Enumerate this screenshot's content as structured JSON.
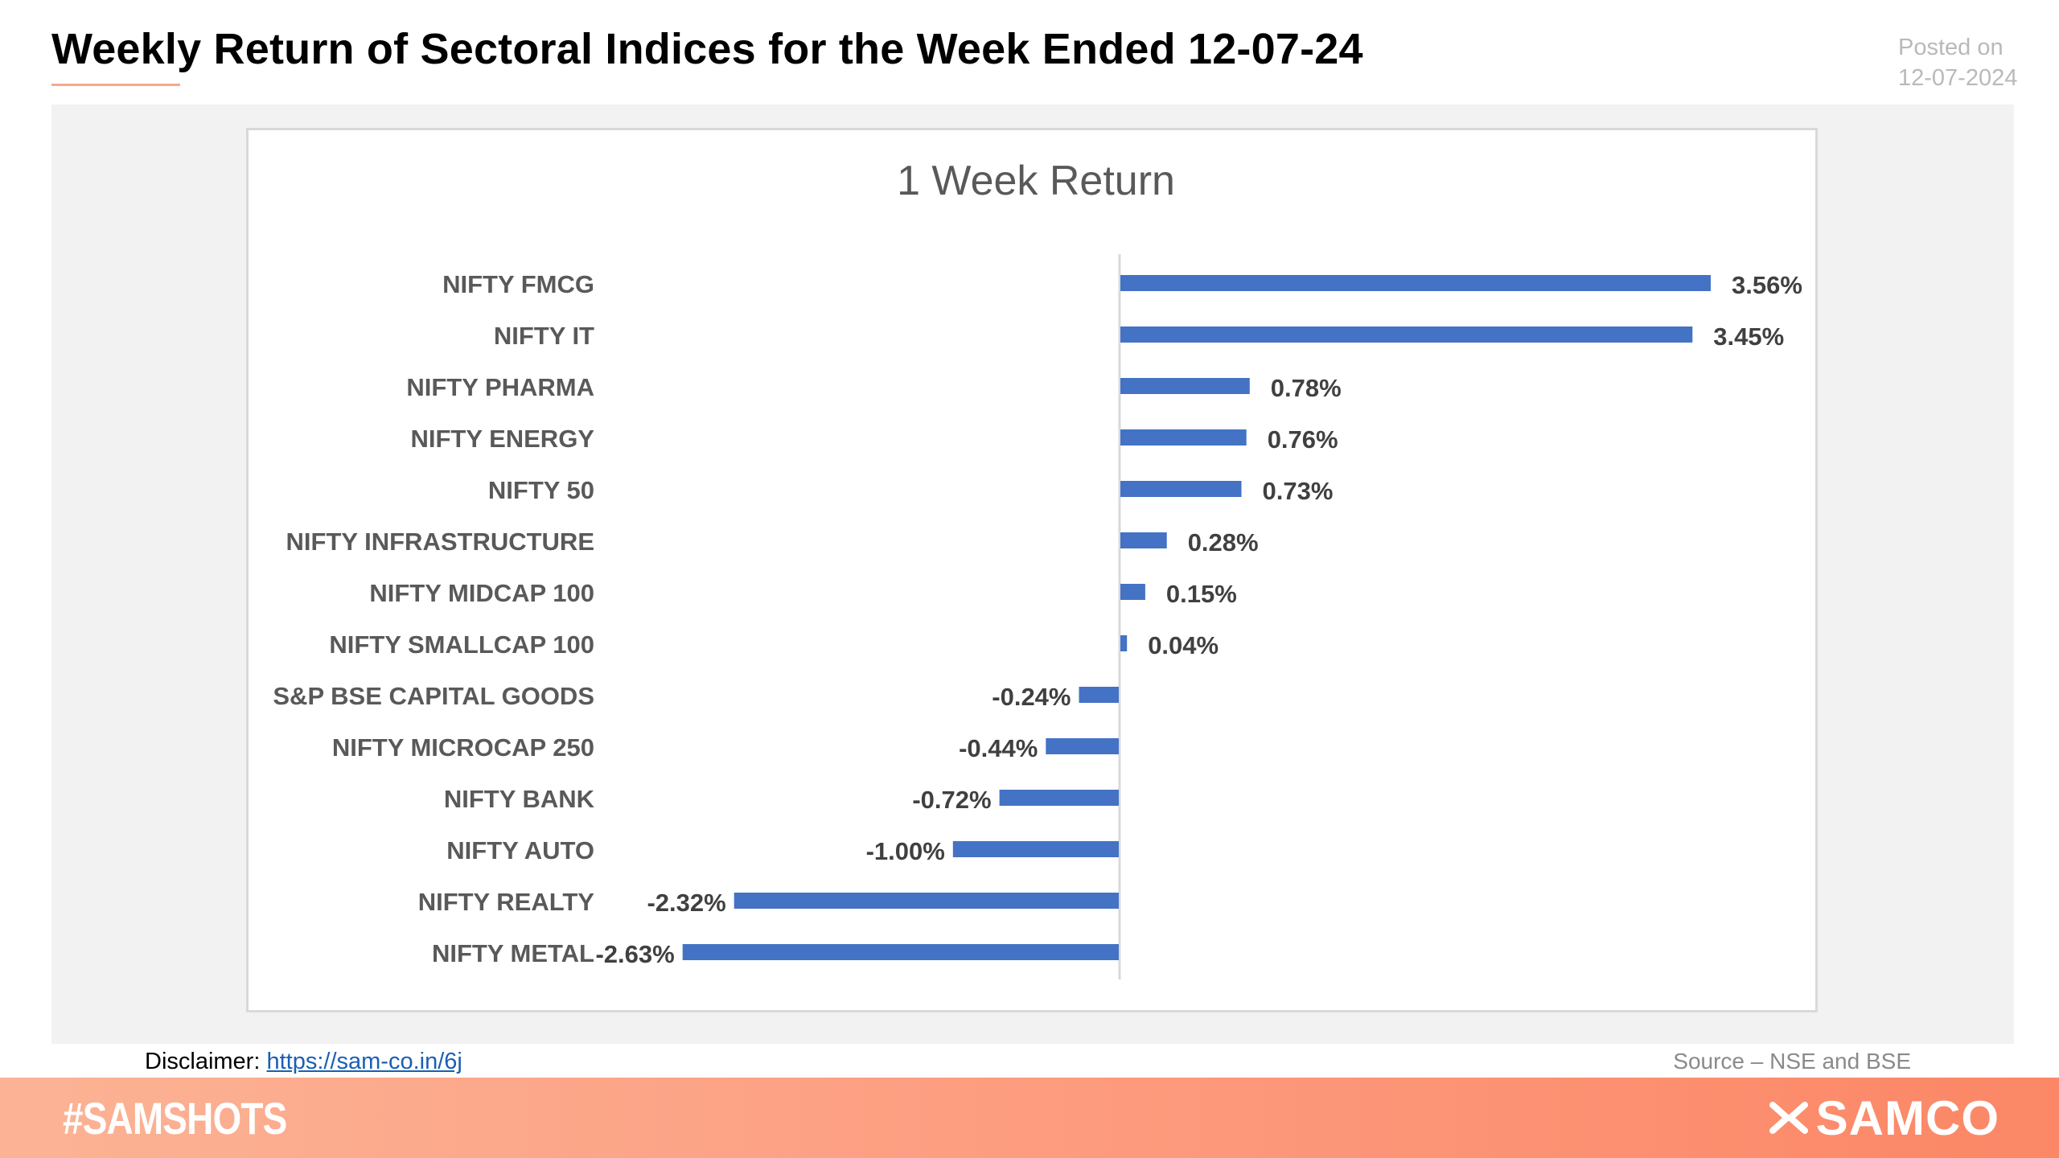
{
  "header": {
    "title": "Weekly Return of Sectoral Indices for the Week Ended 12-07-24",
    "posted_label": "Posted on",
    "posted_date": "12-07-2024"
  },
  "chart_data": {
    "type": "bar",
    "orientation": "horizontal",
    "title": "1 Week Return",
    "categories": [
      "NIFTY FMCG",
      "NIFTY IT",
      "NIFTY PHARMA",
      "NIFTY ENERGY",
      "NIFTY 50",
      "NIFTY INFRASTRUCTURE",
      "NIFTY MIDCAP 100",
      "NIFTY SMALLCAP 100",
      "S&P BSE CAPITAL GOODS",
      "NIFTY MICROCAP 250",
      "NIFTY BANK",
      "NIFTY AUTO",
      "NIFTY REALTY",
      "NIFTY METAL"
    ],
    "values": [
      3.56,
      3.45,
      0.78,
      0.76,
      0.73,
      0.28,
      0.15,
      0.04,
      -0.24,
      -0.44,
      -0.72,
      -1.0,
      -2.32,
      -2.63
    ],
    "data_labels": [
      "3.56%",
      "3.45%",
      "0.78%",
      "0.76%",
      "0.73%",
      "0.28%",
      "0.15%",
      "0.04%",
      "-0.24%",
      "-0.44%",
      "-0.72%",
      "-1.00%",
      "-2.32%",
      "-2.63%"
    ],
    "unit": "%",
    "xlim": [
      -2.63,
      3.56
    ],
    "grid": false,
    "legend": "none",
    "bar_color": "#4472c4",
    "axis_color": "#d9d9d9",
    "label_color": "#595959",
    "value_label_color": "#404040",
    "title_color": "#595959"
  },
  "footer": {
    "disclaimer_label": "Disclaimer:",
    "disclaimer_link": "https://sam-co.in/6j",
    "source": "Source – NSE and BSE",
    "hashtag": "#SAMSHOTS",
    "brand": "SAMCO"
  },
  "colors": {
    "panel_bg": "#f2f2f2",
    "footer_gradient_start": "#fcb395",
    "footer_gradient_end": "#fb8766",
    "posted_text": "#b9b9b9"
  }
}
